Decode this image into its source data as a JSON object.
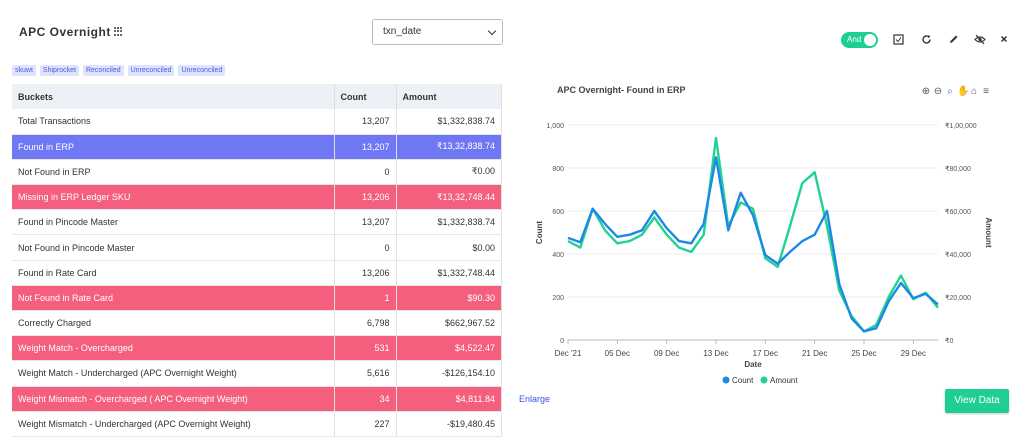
{
  "header": {
    "title": "APC Overnight",
    "date_select": {
      "value": "txn_date"
    }
  },
  "filters": [
    "skuwt",
    "Shiprocket",
    "Reconciled",
    "Unreconciled",
    "Unreconciled"
  ],
  "table": {
    "columns": [
      "Buckets",
      "Count",
      "Amount"
    ],
    "rows": [
      {
        "bucket": "Total Transactions",
        "count": "13,207",
        "amount": "$1,332,838.74",
        "highlight": ""
      },
      {
        "bucket": "Found in ERP",
        "count": "13,207",
        "amount": "₹13,32,838.74",
        "highlight": "blue"
      },
      {
        "bucket": "Not Found in ERP",
        "count": "0",
        "amount": "₹0.00",
        "highlight": ""
      },
      {
        "bucket": "Missing in ERP Ledger SKU",
        "count": "13,206",
        "amount": "₹13,32,748.44",
        "highlight": "red"
      },
      {
        "bucket": "Found in Pincode Master",
        "count": "13,207",
        "amount": "$1,332,838.74",
        "highlight": ""
      },
      {
        "bucket": "Not Found in Pincode Master",
        "count": "0",
        "amount": "$0.00",
        "highlight": ""
      },
      {
        "bucket": "Found in Rate Card",
        "count": "13,206",
        "amount": "$1,332,748.44",
        "highlight": ""
      },
      {
        "bucket": "Not Found in Rate Card",
        "count": "1",
        "amount": "$90.30",
        "highlight": "red"
      },
      {
        "bucket": "Correctly Charged",
        "count": "6,798",
        "amount": "$662,967.52",
        "highlight": ""
      },
      {
        "bucket": "Weight Match - Overcharged",
        "count": "531",
        "amount": "$4,522.47",
        "highlight": "red"
      },
      {
        "bucket": "Weight Match - Undercharged (APC Overnight Weight)",
        "count": "5,616",
        "amount": "-$126,154.10",
        "highlight": ""
      },
      {
        "bucket": "Weight Mismatch - Overcharged ( APC Overnight Weight)",
        "count": "34",
        "amount": "$4,811.84",
        "highlight": "red"
      },
      {
        "bucket": "Weight Mismatch - Undercharged (APC Overnight Weight)",
        "count": "227",
        "amount": "-$19,480.45",
        "highlight": ""
      }
    ]
  },
  "enlarge_label": "Enlarge",
  "toolbar": {
    "toggle_label": "And",
    "icons": [
      "checkbox-icon",
      "refresh-icon",
      "edit-icon",
      "hide-icon",
      "close-icon"
    ]
  },
  "chart_tools": [
    "zoom-in-icon",
    "zoom-out-icon",
    "zoom-select-icon",
    "pan-icon",
    "home-icon",
    "menu-icon"
  ],
  "view_data_label": "View Data",
  "colors": {
    "count": "#1e88e5",
    "amount": "#1fd391",
    "blue_row": "#7077f4",
    "red_row": "#f35f7c",
    "accent": "#1fcf91"
  },
  "chart_data": {
    "type": "line",
    "title": "APC Overnight- Found in ERP",
    "xlabel": "Date",
    "ylabel_left": "Count",
    "ylabel_right": "Amount",
    "x_ticks": [
      "Dec '21",
      "05 Dec",
      "09 Dec",
      "13 Dec",
      "17 Dec",
      "21 Dec",
      "25 Dec",
      "29 Dec"
    ],
    "x_tick_days": [
      1,
      5,
      9,
      13,
      17,
      21,
      25,
      29
    ],
    "y_left_ticks": [
      "0",
      "200",
      "400",
      "600",
      "800",
      "1,000"
    ],
    "y_right_ticks": [
      "₹0",
      "₹20,000",
      "₹40,000",
      "₹60,000",
      "₹80,000",
      "₹1,00,000"
    ],
    "ylim_left": [
      0,
      1000
    ],
    "ylim_right": [
      0,
      100000
    ],
    "xlim": [
      1,
      31
    ],
    "days": [
      1,
      2,
      3,
      4,
      5,
      6,
      7,
      8,
      9,
      10,
      11,
      12,
      13,
      14,
      15,
      16,
      17,
      18,
      19,
      20,
      21,
      22,
      23,
      24,
      25,
      26,
      27,
      28,
      29,
      30,
      31
    ],
    "series": [
      {
        "name": "Count",
        "axis": "left",
        "values": [
          475,
          455,
          610,
          540,
          480,
          490,
          510,
          600,
          520,
          460,
          450,
          540,
          850,
          510,
          685,
          580,
          395,
          355,
          410,
          460,
          490,
          600,
          260,
          100,
          40,
          55,
          180,
          265,
          195,
          215,
          165
        ]
      },
      {
        "name": "Amount",
        "axis": "right",
        "values": [
          46000,
          43000,
          61000,
          51000,
          45000,
          46000,
          49000,
          57000,
          49000,
          43000,
          41000,
          49000,
          94000,
          53000,
          64000,
          61000,
          38000,
          34000,
          53000,
          73000,
          78000,
          53000,
          23000,
          11000,
          4000,
          7000,
          20000,
          30000,
          19000,
          22000,
          15000
        ]
      }
    ]
  }
}
